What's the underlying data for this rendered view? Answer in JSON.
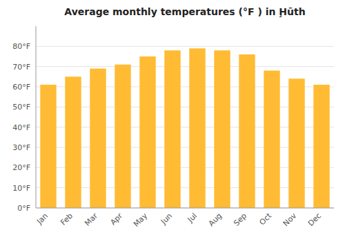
{
  "chart_data": {
    "type": "bar",
    "title": "Average monthly temperatures (°F ) in Ḩūth",
    "categories": [
      "Jan",
      "Feb",
      "Mar",
      "Apr",
      "May",
      "Jun",
      "Jul",
      "Aug",
      "Sep",
      "Oct",
      "Nov",
      "Dec"
    ],
    "values": [
      61,
      65,
      69,
      71,
      75,
      78,
      79,
      78,
      76,
      68,
      64,
      61
    ],
    "color": "#FFBB33",
    "ylim": [
      0,
      90
    ],
    "yticks": [
      {
        "value": 0,
        "label": "0°F"
      },
      {
        "value": 10,
        "label": "10°F"
      },
      {
        "value": 20,
        "label": "20°F"
      },
      {
        "value": 30,
        "label": "30°F"
      },
      {
        "value": 40,
        "label": "40°F"
      },
      {
        "value": 50,
        "label": "50°F"
      },
      {
        "value": 60,
        "label": "60°F"
      },
      {
        "value": 70,
        "label": "70°F"
      },
      {
        "value": 80,
        "label": "80°F"
      }
    ],
    "grid": true
  }
}
